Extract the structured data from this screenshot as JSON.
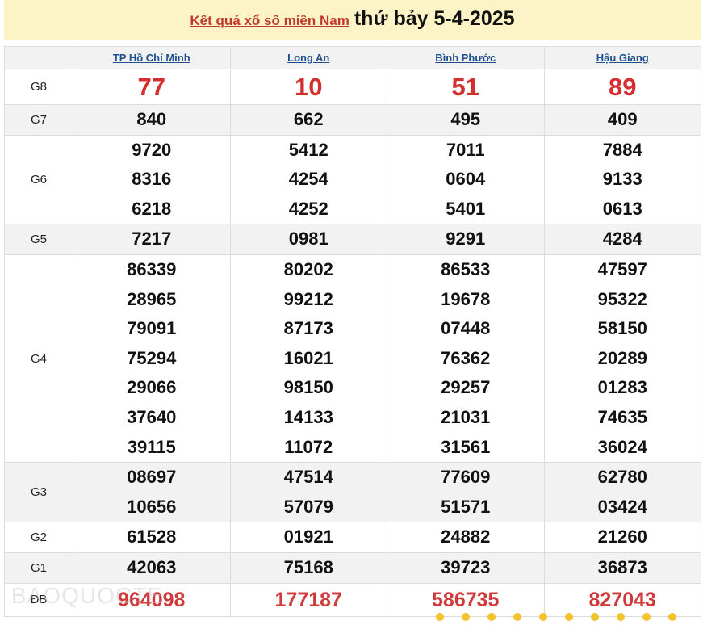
{
  "header": {
    "link": "Kết quả xổ số miền Nam",
    "date": "thứ bảy 5-4-2025"
  },
  "provinces": [
    "TP Hồ Chí Minh",
    "Long An",
    "Bình Phước",
    "Hậu Giang"
  ],
  "prizes": [
    {
      "label": "G8",
      "cls": "g8",
      "values": [
        [
          "77"
        ],
        [
          "10"
        ],
        [
          "51"
        ],
        [
          "89"
        ]
      ]
    },
    {
      "label": "G7",
      "cls": "alt",
      "values": [
        [
          "840"
        ],
        [
          "662"
        ],
        [
          "495"
        ],
        [
          "409"
        ]
      ]
    },
    {
      "label": "G6",
      "cls": "",
      "values": [
        [
          "9720",
          "8316",
          "6218"
        ],
        [
          "5412",
          "4254",
          "4252"
        ],
        [
          "7011",
          "0604",
          "5401"
        ],
        [
          "7884",
          "9133",
          "0613"
        ]
      ]
    },
    {
      "label": "G5",
      "cls": "alt",
      "values": [
        [
          "7217"
        ],
        [
          "0981"
        ],
        [
          "9291"
        ],
        [
          "4284"
        ]
      ]
    },
    {
      "label": "G4",
      "cls": "",
      "values": [
        [
          "86339",
          "28965",
          "79091",
          "75294",
          "29066",
          "37640",
          "39115"
        ],
        [
          "80202",
          "99212",
          "87173",
          "16021",
          "98150",
          "14133",
          "11072"
        ],
        [
          "86533",
          "19678",
          "07448",
          "76362",
          "29257",
          "21031",
          "31561"
        ],
        [
          "47597",
          "95322",
          "58150",
          "20289",
          "01283",
          "74635",
          "36024"
        ]
      ]
    },
    {
      "label": "G3",
      "cls": "alt",
      "values": [
        [
          "08697",
          "10656"
        ],
        [
          "47514",
          "57079"
        ],
        [
          "77609",
          "51571"
        ],
        [
          "62780",
          "03424"
        ]
      ]
    },
    {
      "label": "G2",
      "cls": "",
      "values": [
        [
          "61528"
        ],
        [
          "01921"
        ],
        [
          "24882"
        ],
        [
          "21260"
        ]
      ]
    },
    {
      "label": "G1",
      "cls": "alt",
      "values": [
        [
          "42063"
        ],
        [
          "75168"
        ],
        [
          "39723"
        ],
        [
          "36873"
        ]
      ]
    },
    {
      "label": "ĐB",
      "cls": "db",
      "values": [
        [
          "964098"
        ],
        [
          "177187"
        ],
        [
          "586735"
        ],
        [
          "827043"
        ]
      ]
    }
  ],
  "watermark": "BAOQUOCTE",
  "colors": {
    "header_bg": "#fcf3c6",
    "link": "#c0392b",
    "prize_red": "#d32f2f",
    "province_link": "#1f4e8c"
  }
}
